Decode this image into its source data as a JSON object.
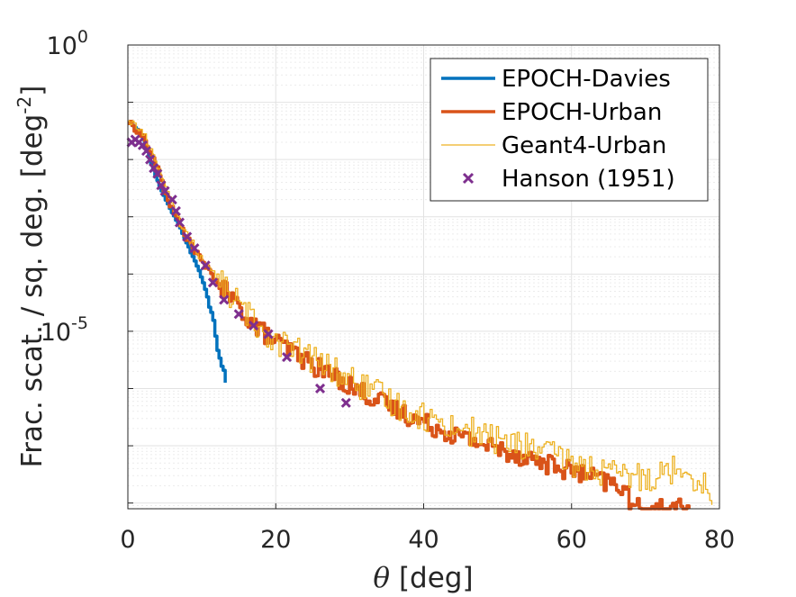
{
  "chart_data": {
    "type": "line",
    "xlabel_symbol": "θ",
    "xlabel_unit": " [deg]",
    "ylabel_main": "Frac. scat. / sq. deg. [deg",
    "ylabel_sup": "-2",
    "ylabel_end": "]",
    "xlim": [
      0,
      80
    ],
    "ylim_exp": [
      -8.1,
      0
    ],
    "yscale": "log",
    "grid": true,
    "legend_position": "top-right",
    "xticks": [
      {
        "value": 0,
        "label": "0"
      },
      {
        "value": 20,
        "label": "20"
      },
      {
        "value": 40,
        "label": "40"
      },
      {
        "value": 60,
        "label": "60"
      },
      {
        "value": 80,
        "label": "80"
      }
    ],
    "yticks": [
      {
        "exp": 0,
        "base": "10",
        "sup": "0"
      },
      {
        "exp": -5,
        "base": "10",
        "sup": "-5"
      }
    ],
    "series": [
      {
        "name": "EPOCH-Davies",
        "color": "#0072BD",
        "style": "line",
        "width": 3.5,
        "noise": 0.03,
        "noise_after": 8,
        "x": [
          0,
          1,
          2,
          3,
          4,
          5,
          6,
          7,
          8,
          9,
          10,
          10.5,
          11,
          11.5,
          12,
          12.5,
          13,
          13.2
        ],
        "log10y": [
          -1.35,
          -1.45,
          -1.65,
          -2.05,
          -2.4,
          -2.7,
          -2.95,
          -3.2,
          -3.5,
          -3.8,
          -4.1,
          -4.3,
          -4.6,
          -4.8,
          -5.3,
          -5.55,
          -5.75,
          -5.9
        ]
      },
      {
        "name": "EPOCH-Urban",
        "color": "#D95319",
        "style": "line",
        "width": 3.5,
        "noise": 0.18,
        "noise_after": 12,
        "x": [
          0,
          2,
          4,
          5,
          6,
          7,
          8,
          9,
          10,
          12,
          14,
          16,
          18,
          20,
          22,
          25,
          28,
          30,
          35,
          40,
          45,
          50,
          55,
          60,
          65,
          67.4,
          67.6,
          76
        ],
        "log10y": [
          -1.35,
          -1.6,
          -2.2,
          -2.6,
          -2.9,
          -3.15,
          -3.4,
          -3.6,
          -3.8,
          -4.15,
          -4.45,
          -4.75,
          -5.0,
          -5.2,
          -5.35,
          -5.6,
          -5.8,
          -5.95,
          -6.3,
          -6.6,
          -6.85,
          -7.05,
          -7.25,
          -7.45,
          -7.65,
          -7.75,
          -8.1,
          -8.1
        ]
      },
      {
        "name": "Geant4-Urban",
        "color": "#EDB120",
        "style": "line",
        "width": 1.3,
        "noise": 0.26,
        "noise_after": 12,
        "x": [
          0,
          2,
          4,
          5,
          6,
          7,
          8,
          9,
          10,
          12,
          14,
          16,
          18,
          20,
          22,
          25,
          28,
          30,
          35,
          40,
          45,
          50,
          55,
          60,
          65,
          70,
          75,
          79
        ],
        "log10y": [
          -1.3,
          -1.55,
          -2.1,
          -2.5,
          -2.85,
          -3.1,
          -3.35,
          -3.55,
          -3.75,
          -4.1,
          -4.4,
          -4.7,
          -4.95,
          -5.15,
          -5.3,
          -5.5,
          -5.7,
          -5.85,
          -6.2,
          -6.5,
          -6.7,
          -6.9,
          -7.05,
          -7.3,
          -7.5,
          -7.55,
          -7.35,
          -7.85
        ]
      },
      {
        "name": "Hanson (1951)",
        "color": "#7E2F8E",
        "style": "marker",
        "x": [
          0.5,
          1,
          1.5,
          2,
          2.5,
          3,
          3.5,
          4,
          4.5,
          5,
          6,
          6.5,
          7,
          8,
          9,
          10.5,
          11.5,
          13,
          15,
          17,
          19,
          21.5,
          26,
          29.5
        ],
        "log10y": [
          -1.7,
          -1.65,
          -1.7,
          -1.75,
          -1.85,
          -2.0,
          -2.15,
          -2.25,
          -2.45,
          -2.55,
          -2.7,
          -2.9,
          -3.1,
          -3.35,
          -3.55,
          -3.85,
          -4.15,
          -4.45,
          -4.7,
          -4.9,
          -5.05,
          -5.45,
          -6.0,
          -6.25
        ]
      }
    ]
  }
}
